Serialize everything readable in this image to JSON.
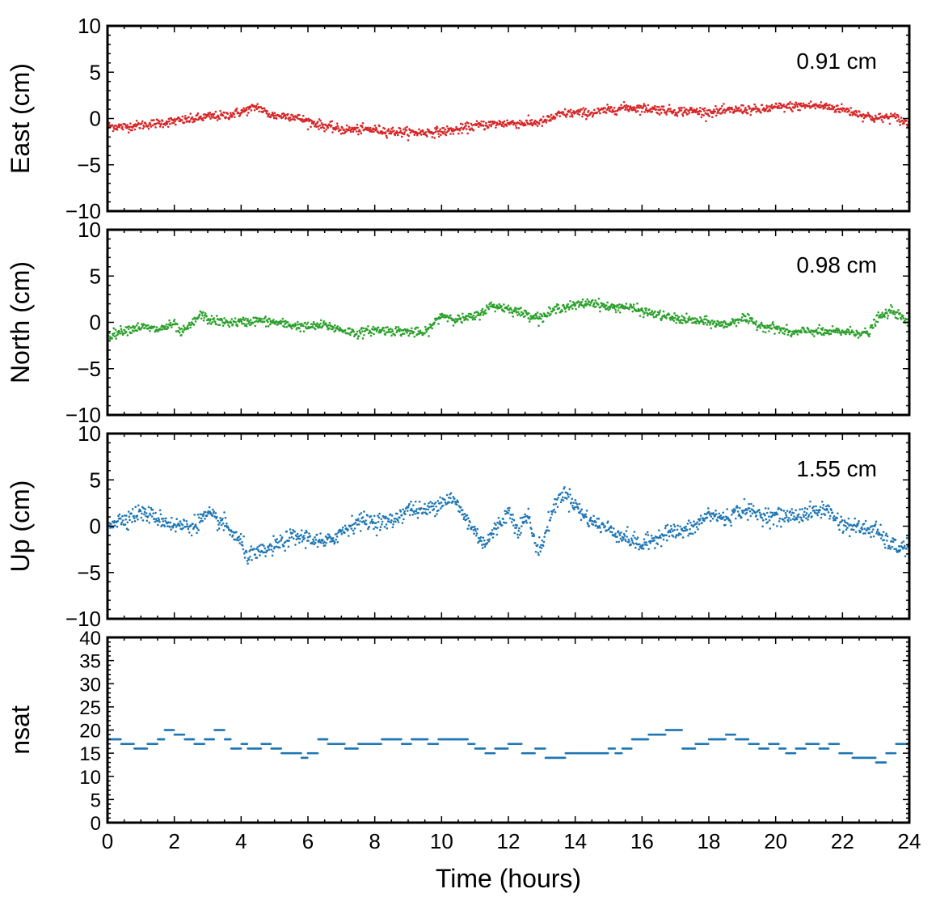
{
  "chart_data": [
    {
      "type": "scatter",
      "ylabel": "East (cm)",
      "ylim": [
        -10,
        10
      ],
      "yticks": [
        -10,
        -5,
        0,
        5,
        10
      ],
      "xlim": [
        0,
        24
      ],
      "annotation": "0.91 cm",
      "color": "#d62728",
      "series": [
        {
          "x": [
            0,
            0.5,
            1,
            1.5,
            2,
            2.5,
            3,
            3.5,
            4,
            4.5,
            4.8,
            5,
            5.5,
            6,
            6.5,
            7,
            7.5,
            8,
            8.5,
            9,
            9.5,
            10,
            10.5,
            11,
            11.5,
            12,
            12.5,
            13,
            13.4,
            13.6,
            14,
            14.5,
            15,
            15.5,
            16,
            16.5,
            17,
            17.5,
            18,
            18.5,
            19,
            19.5,
            20,
            20.5,
            21,
            21.5,
            22,
            22.5,
            23,
            23.5,
            24
          ],
          "values": [
            -0.8,
            -0.9,
            -0.7,
            -0.5,
            -0.3,
            -0.1,
            0.2,
            0.3,
            0.7,
            1.3,
            0.5,
            0.3,
            0.3,
            -0.3,
            -0.8,
            -1.2,
            -1.2,
            -1.2,
            -1.4,
            -1.5,
            -1.5,
            -1.4,
            -1.2,
            -0.8,
            -0.6,
            -0.5,
            -0.5,
            -0.4,
            0.2,
            0.5,
            0.6,
            0.6,
            0.9,
            1.2,
            1.1,
            1.0,
            0.8,
            0.8,
            0.7,
            0.8,
            1.0,
            0.9,
            1.2,
            1.3,
            1.4,
            1.3,
            1.0,
            0.5,
            0.0,
            0.2,
            -0.6
          ]
        }
      ]
    },
    {
      "type": "scatter",
      "ylabel": "North (cm)",
      "ylim": [
        -10,
        10
      ],
      "yticks": [
        -10,
        -5,
        0,
        5,
        10
      ],
      "xlim": [
        0,
        24
      ],
      "annotation": "0.98 cm",
      "color": "#2ca02c",
      "series": [
        {
          "x": [
            0,
            0.5,
            1,
            1.5,
            2,
            2.2,
            2.5,
            2.8,
            3,
            3.5,
            4,
            4.5,
            5,
            5.5,
            6,
            6.5,
            7,
            7.5,
            8,
            8.5,
            9,
            9.5,
            10,
            10.5,
            11,
            11.5,
            12,
            12.5,
            13,
            13.5,
            14,
            14.5,
            15,
            15.5,
            16,
            16.5,
            17,
            17.5,
            18,
            18.5,
            19,
            19.5,
            20,
            20.5,
            21,
            21.5,
            22,
            22.5,
            22.8,
            23,
            23.5,
            24
          ],
          "values": [
            -1.5,
            -0.8,
            -0.5,
            -0.8,
            -0.2,
            -1.2,
            -0.3,
            0.9,
            0.3,
            0.0,
            0.0,
            0.2,
            0.0,
            -0.3,
            -0.5,
            -0.3,
            -0.8,
            -1.2,
            -0.8,
            -0.9,
            -1.0,
            -1.2,
            0.8,
            0.3,
            0.6,
            1.8,
            1.5,
            0.9,
            0.5,
            1.6,
            1.8,
            2.2,
            1.6,
            1.7,
            1.2,
            0.8,
            0.4,
            0.2,
            0.0,
            -0.3,
            0.5,
            -0.3,
            -0.6,
            -1.2,
            -0.9,
            -1.1,
            -1.0,
            -1.1,
            -1.2,
            0.3,
            1.3,
            -0.2
          ]
        }
      ]
    },
    {
      "type": "scatter",
      "ylabel": "Up (cm)",
      "ylim": [
        -10,
        10
      ],
      "yticks": [
        -10,
        -5,
        0,
        5,
        10
      ],
      "xlim": [
        0,
        24
      ],
      "annotation": "1.55 cm",
      "color": "#1f77b4",
      "series": [
        {
          "x": [
            0,
            0.5,
            1,
            1.5,
            2,
            2.5,
            3,
            3.5,
            4,
            4.2,
            4.5,
            5,
            5.5,
            6,
            6.5,
            7,
            7.5,
            8,
            8.5,
            9,
            9.5,
            10,
            10.3,
            10.5,
            11,
            11.3,
            11.5,
            12,
            12.3,
            12.6,
            12.8,
            13,
            13.3,
            13.6,
            13.9,
            14.2,
            14.5,
            15,
            15.5,
            16,
            16.3,
            16.8,
            17,
            17.5,
            18,
            18.5,
            19,
            19.5,
            20,
            20.5,
            21,
            21.5,
            22,
            22.5,
            23,
            23.3,
            23.6,
            24
          ],
          "values": [
            0.3,
            0.8,
            1.5,
            0.9,
            0.1,
            0.0,
            1.2,
            0.2,
            -1.8,
            -3.2,
            -3.0,
            -2.2,
            -1.2,
            -1.2,
            -1.9,
            -0.6,
            0.6,
            0.5,
            0.5,
            1.9,
            1.6,
            2.7,
            3.0,
            2.1,
            -0.6,
            -1.9,
            -0.9,
            1.6,
            -0.3,
            1.2,
            -2.1,
            -2.2,
            1.5,
            3.6,
            2.9,
            1.3,
            0.5,
            -0.3,
            -1.2,
            -2.1,
            -1.5,
            -0.5,
            -0.7,
            -0.3,
            1.3,
            0.8,
            1.8,
            1.3,
            1.0,
            1.1,
            1.4,
            1.9,
            0.2,
            -0.2,
            -0.4,
            -1.6,
            -2.3,
            -2.2
          ]
        }
      ]
    },
    {
      "type": "scatter",
      "ylabel": "nsat",
      "ylim": [
        0,
        40
      ],
      "yticks": [
        0,
        5,
        10,
        15,
        20,
        25,
        30,
        35,
        40
      ],
      "xlim": [
        0,
        24
      ],
      "xlabel": "Time (hours)",
      "xticks": [
        0,
        2,
        4,
        6,
        8,
        10,
        12,
        14,
        16,
        18,
        20,
        22,
        24
      ],
      "color": "#1f77b4",
      "step": true,
      "series": [
        {
          "x": [
            0,
            0.4,
            0.8,
            1.2,
            1.5,
            1.7,
            2.0,
            2.3,
            2.6,
            2.9,
            3.2,
            3.5,
            3.7,
            4.0,
            4.2,
            4.6,
            4.9,
            5.2,
            5.8,
            6.0,
            6.3,
            6.6,
            7.1,
            7.5,
            7.8,
            8.2,
            8.8,
            9.1,
            9.3,
            9.6,
            9.9,
            10.5,
            10.8,
            11.0,
            11.3,
            11.6,
            12.0,
            12.4,
            12.8,
            13.1,
            13.4,
            13.7,
            14.2,
            14.6,
            15.0,
            15.2,
            15.4,
            15.7,
            16.2,
            16.5,
            16.7,
            17.2,
            17.6,
            18.0,
            18.5,
            18.8,
            19.2,
            19.5,
            19.8,
            20.1,
            20.3,
            20.6,
            20.9,
            21.3,
            21.6,
            21.9,
            22.3,
            22.5,
            23.0,
            23.3,
            23.6,
            24.0
          ],
          "values": [
            18,
            17,
            16,
            17,
            18,
            20,
            19,
            18,
            17,
            18,
            20,
            18,
            16,
            17,
            16,
            17,
            16,
            15,
            14,
            15,
            18,
            17,
            16,
            17,
            17,
            18,
            17,
            18,
            18,
            17,
            18,
            18,
            17,
            16,
            15,
            16,
            17,
            15,
            16,
            14,
            14,
            15,
            15,
            15,
            16,
            15,
            16,
            18,
            19,
            19,
            20,
            16,
            17,
            18,
            19,
            18,
            17,
            16,
            17,
            16,
            15,
            16,
            17,
            16,
            17,
            15,
            14,
            14,
            13,
            15,
            17,
            18
          ]
        }
      ]
    }
  ]
}
